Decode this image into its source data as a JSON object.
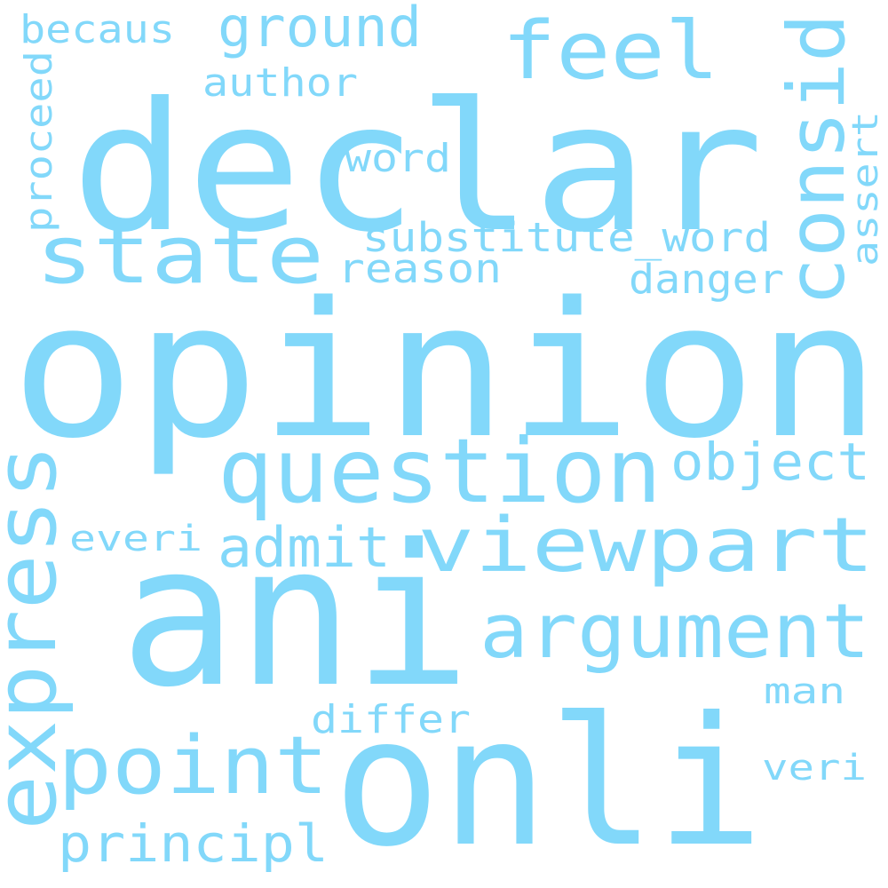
{
  "cloud": {
    "color": "#82D8FA",
    "background": "#ffffff",
    "words": [
      {
        "text": "opinion"
      },
      {
        "text": "declar"
      },
      {
        "text": "ani"
      },
      {
        "text": "onli"
      },
      {
        "text": "express"
      },
      {
        "text": "question"
      },
      {
        "text": "viewpart"
      },
      {
        "text": "state"
      },
      {
        "text": "point"
      },
      {
        "text": "argument"
      },
      {
        "text": "consid"
      },
      {
        "text": "feel"
      },
      {
        "text": "ground"
      },
      {
        "text": "object"
      },
      {
        "text": "principl"
      },
      {
        "text": "admit"
      },
      {
        "text": "substitute_word"
      },
      {
        "text": "reason"
      },
      {
        "text": "danger"
      },
      {
        "text": "author"
      },
      {
        "text": "word"
      },
      {
        "text": "becaus"
      },
      {
        "text": "proceed"
      },
      {
        "text": "assert"
      },
      {
        "text": "everi"
      },
      {
        "text": "differ"
      },
      {
        "text": "man"
      },
      {
        "text": "veri"
      }
    ]
  }
}
